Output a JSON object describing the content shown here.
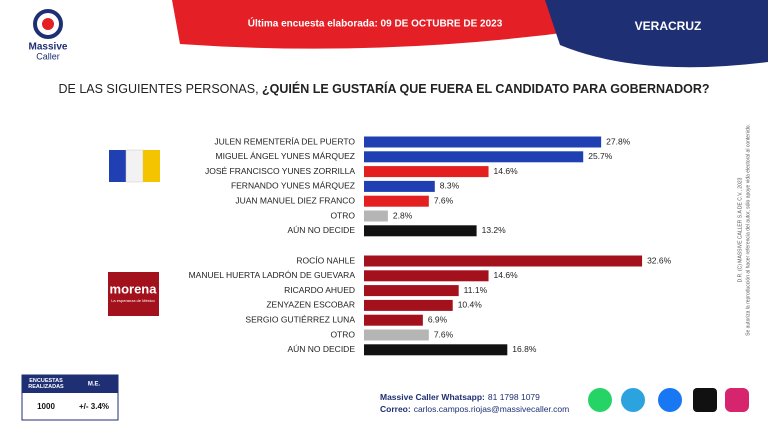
{
  "header": {
    "date_line": "Última encuesta elaborada: 09 DE OCTUBRE DE 2023",
    "state": "VERACRUZ",
    "logo_line1": "Massive",
    "logo_line2": "Caller"
  },
  "chart_data": {
    "type": "bar",
    "orientation": "horizontal",
    "question_lead": "DE LAS SIGUIENTES PERSONAS, ",
    "question_main": "¿QUIÉN LE GUSTARÍA QUE FUERA EL CANDIDATO PARA GOBERNADOR?",
    "groups": [
      {
        "categories": [
          "JULEN REMENTERÍA DEL PUERTO",
          "MIGUEL ÁNGEL YUNES MÁRQUEZ",
          "JOSÉ FRANCISCO YUNES ZORRILLA",
          "FERNANDO YUNES MÁRQUEZ",
          "JUAN MANUEL DIEZ FRANCO",
          "OTRO",
          "AÚN NO DECIDE"
        ],
        "values": [
          27.8,
          25.7,
          14.6,
          8.3,
          7.6,
          2.8,
          13.2
        ],
        "value_labels": [
          "27.8%",
          "25.7%",
          "14.6%",
          "8.3%",
          "7.6%",
          "2.8%",
          "13.2%"
        ],
        "colors": [
          "#1f3fb3",
          "#1f3fb3",
          "#e41f1f",
          "#1f3fb3",
          "#e41f1f",
          "#b5b5b5",
          "#111111"
        ]
      },
      {
        "logo": "morena",
        "logo_sub": "La esperanza de México",
        "categories": [
          "ROCÍO NAHLE",
          "MANUEL HUERTA LADRÓN DE GUEVARA",
          "RICARDO AHUED",
          "ZENYAZEN ESCOBAR",
          "SERGIO GUTIÉRREZ LUNA",
          "OTRO",
          "AÚN NO DECIDE"
        ],
        "values": [
          32.6,
          14.6,
          11.1,
          10.4,
          6.9,
          7.6,
          16.8
        ],
        "value_labels": [
          "32.6%",
          "14.6%",
          "11.1%",
          "10.4%",
          "6.9%",
          "7.6%",
          "16.8%"
        ],
        "colors": [
          "#a3111c",
          "#a3111c",
          "#a3111c",
          "#a3111c",
          "#a3111c",
          "#b5b5b5",
          "#111111"
        ]
      }
    ]
  },
  "side_note": {
    "line1": "D.R. (C) MASSIVE CALLER S.A DE C.V., 2023",
    "line2": "Se autoriza la reproducción al hacer referencia del autor, sólo apoye vida electoral al contenido."
  },
  "sample_table": {
    "headers": [
      "ENCUESTAS REALIZADAS",
      "M.E."
    ],
    "row": [
      "1000",
      "+/- 3.4%"
    ]
  },
  "footer": {
    "whatsapp_label": "Massive Caller Whatsapp:",
    "whatsapp": "81 1798 1079",
    "email_label": "Correo:",
    "email": "carlos.campos.riojas@massivecaller.com"
  }
}
